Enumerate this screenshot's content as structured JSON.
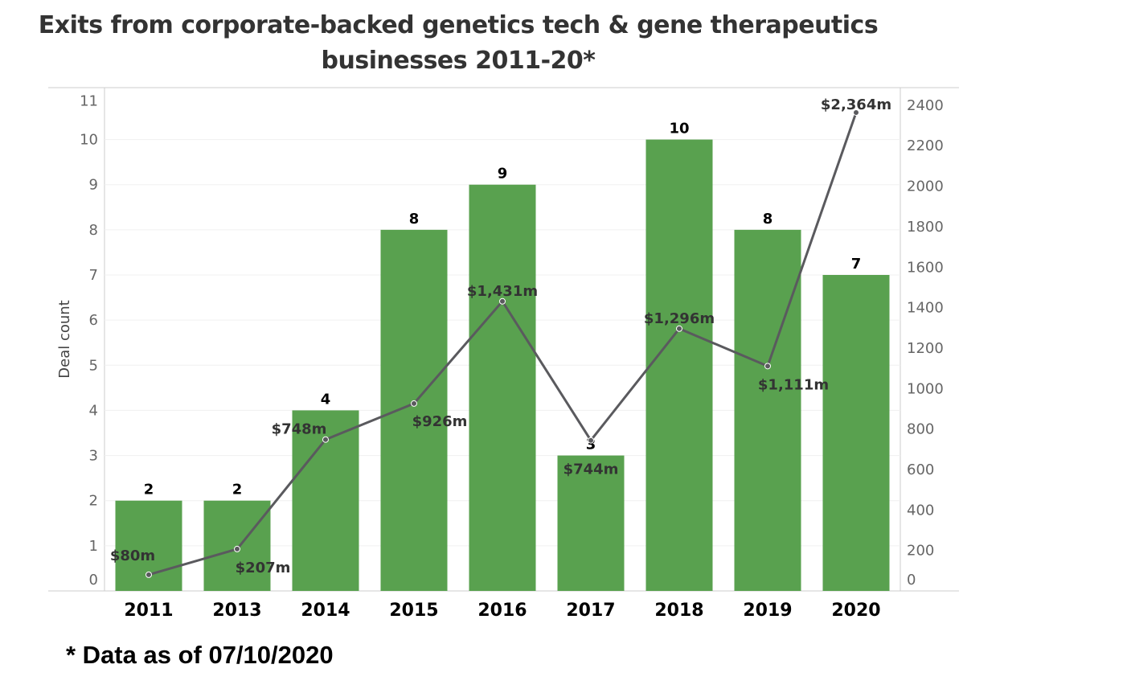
{
  "chart_data": {
    "type": "bar+line",
    "title_lines": [
      "Exits from corporate-backed  genetics tech & gene therapeutics",
      "businesses 2011-20*"
    ],
    "categories": [
      "2011",
      "2013",
      "2014",
      "2015",
      "2016",
      "2017",
      "2018",
      "2019",
      "2020"
    ],
    "series": [
      {
        "name": "Deal count",
        "type": "bar",
        "axis": "left",
        "values": [
          2,
          2,
          4,
          8,
          9,
          3,
          10,
          8,
          7
        ],
        "labels": [
          "2",
          "2",
          "4",
          "8",
          "9",
          "3",
          "10",
          "8",
          "7"
        ],
        "color": "#59a14f"
      },
      {
        "name": "Exit value ($m)",
        "type": "line",
        "axis": "right",
        "values": [
          80,
          207,
          748,
          926,
          1431,
          744,
          1296,
          1111,
          2364
        ],
        "labels": [
          "$80m",
          "$207m",
          "$748m",
          "$926m",
          "$1,431m",
          "$744m",
          "$1,296m",
          "$1,111m",
          "$2,364m"
        ],
        "color": "#5a5a5e"
      }
    ],
    "ylabel": "Deal count",
    "ylim": [
      0,
      11.15
    ],
    "yticks": [
      "0",
      "1",
      "2",
      "3",
      "4",
      "5",
      "6",
      "7",
      "8",
      "9",
      "10",
      "11"
    ],
    "y2lim": [
      0,
      2487
    ],
    "y2ticks": [
      "0",
      "200",
      "400",
      "600",
      "800",
      "1000",
      "1200",
      "1400",
      "1600",
      "1800",
      "2000",
      "2200",
      "2400"
    ],
    "grid": true
  },
  "footnote": "* Data as of 07/10/2020"
}
